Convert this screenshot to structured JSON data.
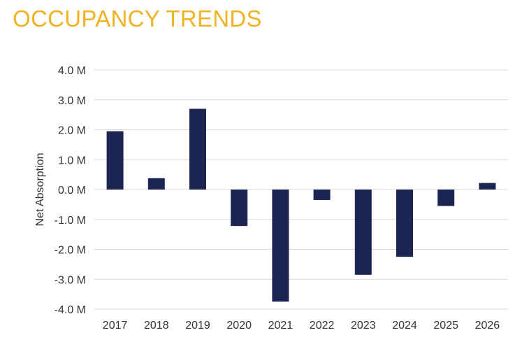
{
  "colors": {
    "title": "#F0B323",
    "bar": "#1C2452",
    "grid": "#D9D9D9",
    "text": "#333333"
  },
  "chart_data": {
    "type": "bar",
    "title": "OCCUPANCY TRENDS",
    "xlabel": "",
    "ylabel": "Net Absorption",
    "categories": [
      "2017",
      "2018",
      "2019",
      "2020",
      "2021",
      "2022",
      "2023",
      "2024",
      "2025",
      "2026"
    ],
    "series": [
      {
        "values": [
          1.95,
          0.38,
          2.7,
          -1.22,
          -3.75,
          -0.35,
          -2.85,
          -2.25,
          -0.55,
          0.22
        ]
      }
    ],
    "ylim": [
      -4,
      4
    ],
    "y_ticks": [
      4,
      3,
      2,
      1,
      0,
      -1,
      -2,
      -3,
      -4
    ],
    "y_tick_labels": [
      "4.0 M",
      "3.0 M",
      "2.0 M",
      "1.0 M",
      "0.0 M",
      "-1.0 M",
      "-2.0 M",
      "-3.0 M",
      "-4.0 M"
    ],
    "grid": true,
    "legend": "none"
  }
}
